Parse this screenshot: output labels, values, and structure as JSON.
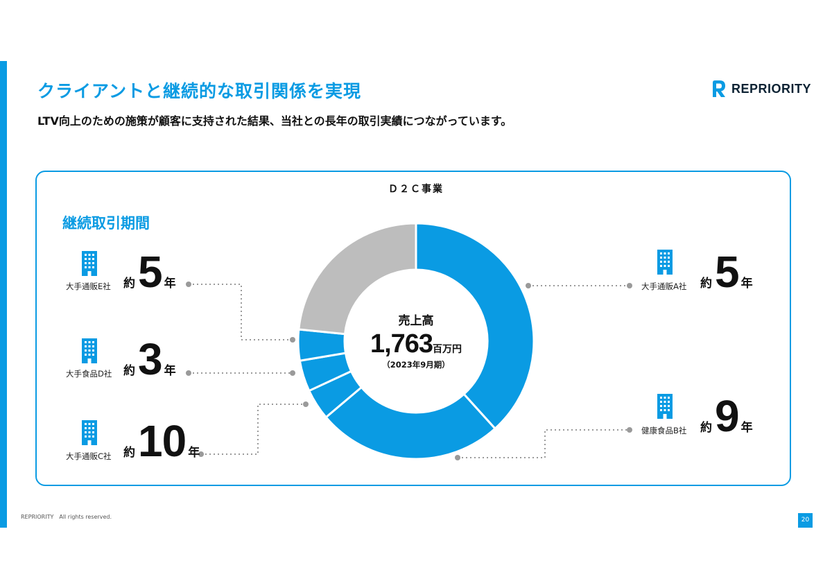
{
  "header": {
    "title": "クライアントと継続的な取引関係を実現",
    "subtitle": "LTV向上のための施策が顧客に支持された結果、当社との長年の取引実績につながっています。",
    "logo_text": "REPRIORITY"
  },
  "panel": {
    "title": "Ｄ２Ｃ事業",
    "period_label": "継続取引期間"
  },
  "center": {
    "label": "売上高",
    "value": "1,763",
    "unit": "百万円",
    "period": "（2023年9月期）"
  },
  "clients": [
    {
      "name": "大手通販E社",
      "prefix": "約",
      "years": "5",
      "suffix": "年"
    },
    {
      "name": "大手食品D社",
      "prefix": "約",
      "years": "3",
      "suffix": "年"
    },
    {
      "name": "大手通販C社",
      "prefix": "約",
      "years": "10",
      "suffix": "年"
    },
    {
      "name": "大手通販A社",
      "prefix": "約",
      "years": "5",
      "suffix": "年"
    },
    {
      "name": "健康食品B社",
      "prefix": "約",
      "years": "9",
      "suffix": "年"
    }
  ],
  "chart_data": {
    "type": "pie",
    "title": "",
    "slices": [
      {
        "label": "大手通販A社",
        "value": 36,
        "color": "#0a9be3"
      },
      {
        "label": "健康食品B社",
        "value": 24,
        "color": "#0a9be3"
      },
      {
        "label": "大手通販C社",
        "value": 4,
        "color": "#0a9be3"
      },
      {
        "label": "大手食品D社",
        "value": 4,
        "color": "#0a9be3"
      },
      {
        "label": "大手通販E社",
        "value": 4,
        "color": "#0a9be3"
      },
      {
        "label": "",
        "value": 22,
        "color": "#bdbdbd"
      }
    ]
  },
  "footer": {
    "copyright": "REPRIORITY　All rights reserved.",
    "page": "20"
  },
  "colors": {
    "accent": "#0a9be3",
    "gray_segment": "#bdbdbd",
    "connector": "#9a9a9a"
  }
}
